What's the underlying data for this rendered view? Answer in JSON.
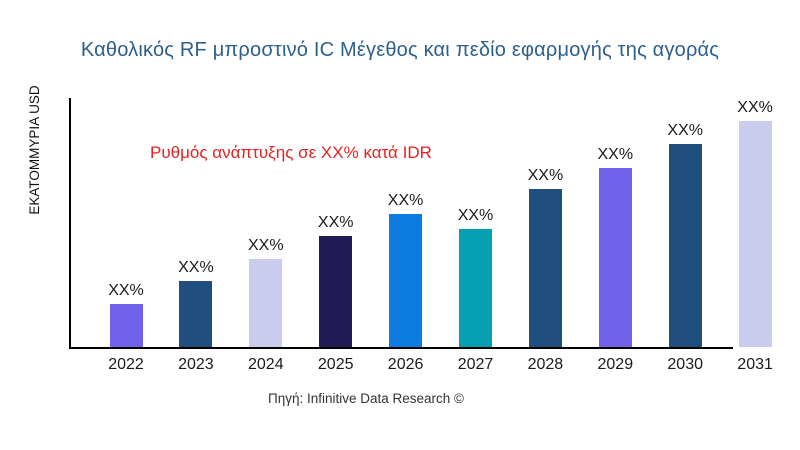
{
  "title": "Καθολικός RF μπροστινό IC Μέγεθος και πεδίο εφαρμογής της αγοράς",
  "annotation": "Ρυθμός ανάπτυξης σε XX% κατά IDR",
  "source": "Πηγή: Infinitive Data Research ©",
  "colors": {
    "title_text": "#2d5f8d",
    "annotation_text": "#e42320",
    "axis": "#000000",
    "label_text": "#1a1a1a"
  },
  "chart_data": {
    "type": "bar",
    "title": "Καθολικός RF μπροστινό IC Μέγεθος και πεδίο εφαρμογής της αγοράς",
    "xlabel": "",
    "ylabel": "ΕΚΑΤΟΜΜΥΡΙΑ USD",
    "categories": [
      "2022",
      "2023",
      "2024",
      "2025",
      "2026",
      "2027",
      "2028",
      "2029",
      "2030",
      "2031"
    ],
    "bar_value_labels": [
      "XX%",
      "XX%",
      "XX%",
      "XX%",
      "XX%",
      "XX%",
      "XX%",
      "XX%",
      "XX%",
      "XX%"
    ],
    "values_relative_pct_of_max": [
      19,
      29,
      39,
      49,
      59,
      52,
      70,
      79,
      90,
      100
    ],
    "bar_colors": [
      "#7062e8",
      "#1f4e7f",
      "#c9cced",
      "#211b55",
      "#0c7ce2",
      "#069fb2",
      "#1f4e7f",
      "#7062e8",
      "#1f4e7f",
      "#c9cced"
    ],
    "annotation": "Ρυθμός ανάπτυξης σε XX% κατά IDR",
    "grid": false,
    "legend": "none",
    "ylim_note": "no numeric axis ticks shown; values displayed as XX% placeholders"
  }
}
